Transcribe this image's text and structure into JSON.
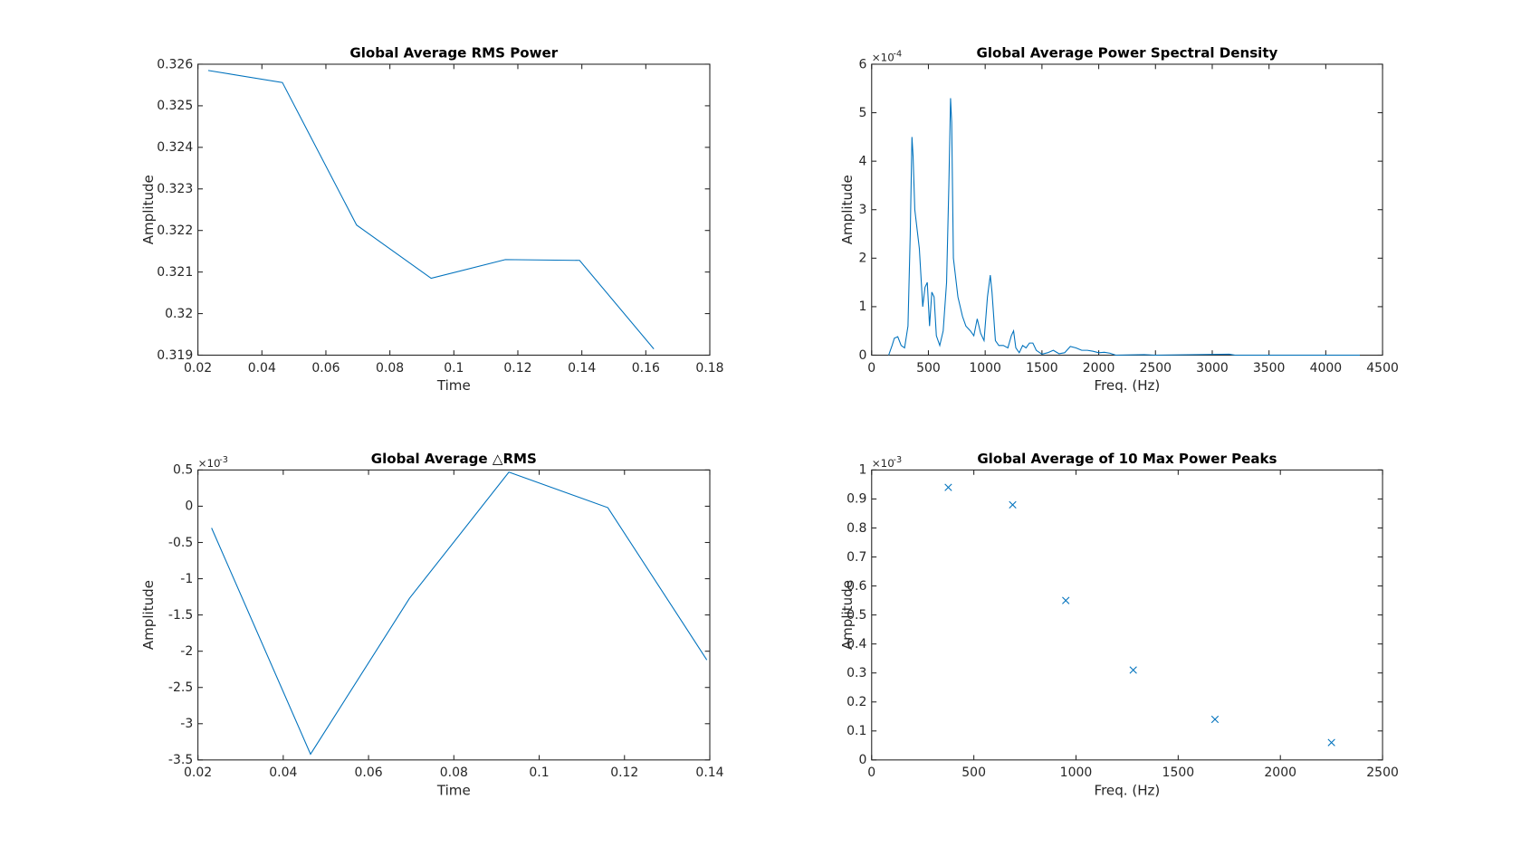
{
  "chart_data": [
    {
      "type": "line",
      "title": "Global Average RMS Power",
      "xlabel": "Time",
      "ylabel": "Amplitude",
      "x": [
        0.0232,
        0.0464,
        0.0696,
        0.0929,
        0.1161,
        0.1393,
        0.1625
      ],
      "series": [
        {
          "color": "#0072bd",
          "values": [
            0.32585,
            0.32556,
            0.32213,
            0.32085,
            0.3213,
            0.32128,
            0.31915
          ]
        }
      ],
      "xlim": [
        0.02,
        0.18
      ],
      "xticks": [
        0.02,
        0.04,
        0.06,
        0.08,
        0.1,
        0.12,
        0.14,
        0.16,
        0.18
      ],
      "ylim": [
        0.319,
        0.326
      ],
      "yticks": [
        0.319,
        0.32,
        0.321,
        0.322,
        0.323,
        0.324,
        0.325,
        0.326
      ]
    },
    {
      "type": "line",
      "title": "Global Average Power Spectral Density",
      "xlabel": "Freq. (Hz)",
      "ylabel": "Amplitude",
      "y_scale_base": "×10",
      "y_scale_exponent": "-4",
      "x": [
        150,
        180,
        200,
        230,
        260,
        290,
        320,
        340,
        355,
        365,
        380,
        420,
        450,
        470,
        490,
        510,
        530,
        550,
        570,
        600,
        630,
        660,
        680,
        695,
        705,
        720,
        760,
        800,
        830,
        870,
        900,
        930,
        960,
        990,
        1020,
        1045,
        1060,
        1090,
        1120,
        1160,
        1200,
        1230,
        1250,
        1270,
        1300,
        1330,
        1360,
        1390,
        1420,
        1450,
        1500,
        1550,
        1600,
        1650,
        1700,
        1750,
        1800,
        1850,
        1900,
        1950,
        2000,
        2050,
        2100,
        2150,
        2400,
        2500,
        3150,
        3200,
        4300
      ],
      "series": [
        {
          "color": "#0072bd",
          "values": [
            0,
            0.2,
            0.35,
            0.38,
            0.2,
            0.15,
            0.6,
            2.5,
            4.5,
            4.1,
            3.0,
            2.2,
            1.0,
            1.4,
            1.5,
            0.6,
            1.3,
            1.2,
            0.4,
            0.2,
            0.5,
            1.5,
            3.5,
            5.3,
            4.8,
            2.0,
            1.2,
            0.8,
            0.6,
            0.5,
            0.4,
            0.75,
            0.45,
            0.3,
            1.2,
            1.65,
            1.3,
            0.3,
            0.2,
            0.2,
            0.15,
            0.4,
            0.5,
            0.15,
            0.05,
            0.2,
            0.15,
            0.25,
            0.25,
            0.1,
            0.02,
            0.05,
            0.1,
            0.03,
            0.05,
            0.18,
            0.15,
            0.1,
            0.1,
            0.08,
            0.05,
            0.06,
            0.04,
            0,
            0.01,
            0,
            0.02,
            0,
            0
          ]
        }
      ],
      "xlim": [
        0,
        4500
      ],
      "xticks": [
        0,
        500,
        1000,
        1500,
        2000,
        2500,
        3000,
        3500,
        4000,
        4500
      ],
      "ylim": [
        0,
        6
      ],
      "yticks": [
        0,
        1,
        2,
        3,
        4,
        5,
        6
      ]
    },
    {
      "type": "line",
      "title": "Global Average △RMS",
      "xlabel": "Time",
      "ylabel": "Amplitude",
      "y_scale_base": "×10",
      "y_scale_exponent": "-3",
      "x": [
        0.0232,
        0.0464,
        0.0696,
        0.0929,
        0.1161,
        0.1393
      ],
      "series": [
        {
          "color": "#0072bd",
          "values": [
            -0.3,
            -3.42,
            -1.27,
            0.47,
            -0.02,
            -2.12
          ]
        }
      ],
      "xlim": [
        0.02,
        0.14
      ],
      "xticks": [
        0.02,
        0.04,
        0.06,
        0.08,
        0.1,
        0.12,
        0.14
      ],
      "ylim": [
        -3.5,
        0.5
      ],
      "yticks": [
        -3.5,
        -3,
        -2.5,
        -2,
        -1.5,
        -1,
        -0.5,
        0,
        0.5
      ]
    },
    {
      "type": "scatter",
      "title": "Global Average of 10 Max Power Peaks",
      "xlabel": "Freq. (Hz)",
      "ylabel": "Amplitude",
      "y_scale_base": "×10",
      "y_scale_exponent": "-3",
      "x": [
        375,
        690,
        950,
        1280,
        1680,
        2250
      ],
      "series": [
        {
          "color": "#0072bd",
          "values": [
            0.94,
            0.88,
            0.55,
            0.31,
            0.14,
            0.06
          ]
        }
      ],
      "xlim": [
        0,
        2500
      ],
      "xticks": [
        0,
        500,
        1000,
        1500,
        2000,
        2500
      ],
      "ylim": [
        0,
        1
      ],
      "yticks": [
        0,
        0.1,
        0.2,
        0.3,
        0.4,
        0.5,
        0.6,
        0.7,
        0.8,
        0.9,
        1
      ]
    }
  ]
}
